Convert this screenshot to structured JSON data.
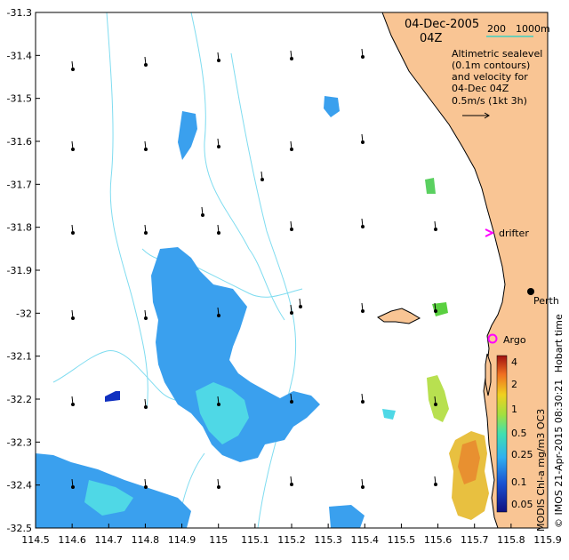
{
  "map": {
    "date": "04-Dec-2005",
    "time": "04Z",
    "depth_labels": [
      "200",
      "1000m"
    ],
    "legend_lines": [
      "Altimetric sealevel",
      "(0.1m contours)",
      "and velocity for",
      "04-Dec 04Z",
      "0.5m/s (1kt 3h)"
    ],
    "drifter_label": "drifter",
    "argo_label": "Argo",
    "perth_label": "Perth",
    "hobart_time": "Hobart time",
    "credit": "© IMOS 21-Apr-2015 08:30:21",
    "colorbar_title": "MODIS Chl-a mg/m3 OC3",
    "colorbar_ticks": [
      "4",
      "2",
      "1",
      "0.5",
      "0.25",
      "0.1",
      "0.05"
    ],
    "x_ticks": [
      "114.5",
      "114.6",
      "114.7",
      "114.8",
      "114.9",
      "115",
      "115.1",
      "115.2",
      "115.3",
      "115.4",
      "115.5",
      "115.6",
      "115.7",
      "115.8",
      "115.9"
    ],
    "y_ticks": [
      "-31.3",
      "-31.4",
      "-31.5",
      "-31.6",
      "-31.7",
      "-31.8",
      "-31.9",
      "-32",
      "-32.1",
      "-32.2",
      "-32.3",
      "-32.4",
      "-32.5"
    ],
    "colors": {
      "land": "#f9c594",
      "coast": "#000000",
      "contour": "#7fdcf0",
      "chl_low": "#2f8ff0",
      "chl_mid": "#3fd0e0",
      "chl_high": "#e8b030",
      "drifter": "#ff00ff",
      "depth200": "#40d0c0",
      "depth1000": "#2080a0"
    }
  }
}
